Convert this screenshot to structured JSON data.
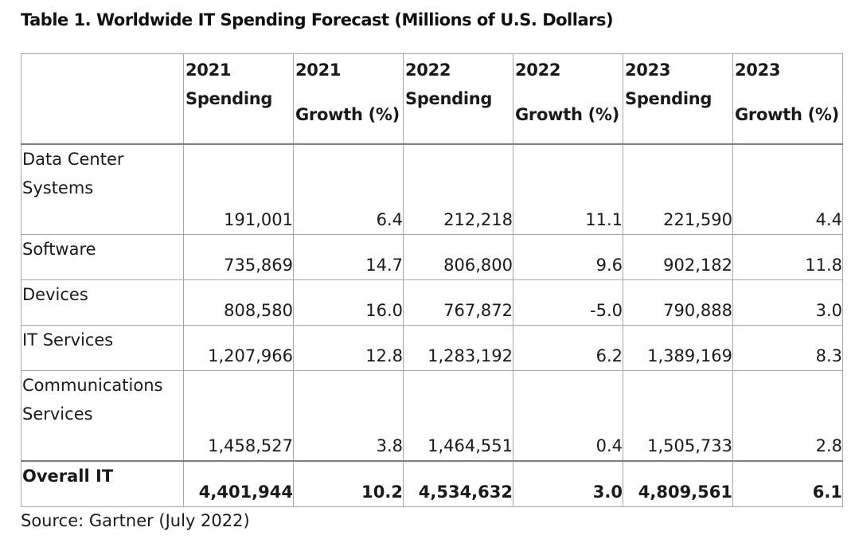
{
  "title": "Table 1. Worldwide IT Spending Forecast (Millions of U.S. Dollars)",
  "columns": [
    {
      "year": "2021",
      "label": "Spending"
    },
    {
      "year": "2021",
      "label": "Growth (%)"
    },
    {
      "year": "2022",
      "label": "Spending"
    },
    {
      "year": "2022",
      "label": "Growth (%)"
    },
    {
      "year": "2023",
      "label": "Spending"
    },
    {
      "year": "2023",
      "label": "Growth (%)"
    }
  ],
  "rows": [
    {
      "label": "Data Center Systems",
      "values": [
        "191,001",
        "6.4",
        "212,218",
        "11.1",
        "221,590",
        "4.4"
      ]
    },
    {
      "label": "Software",
      "values": [
        "735,869",
        "14.7",
        "806,800",
        "9.6",
        "902,182",
        "11.8"
      ]
    },
    {
      "label": "Devices",
      "values": [
        "808,580",
        "16.0",
        "767,872",
        "-5.0",
        "790,888",
        "3.0"
      ]
    },
    {
      "label": "IT Services",
      "values": [
        "1,207,966",
        "12.8",
        "1,283,192",
        "6.2",
        "1,389,169",
        "8.3"
      ]
    },
    {
      "label": "Communications Services",
      "values": [
        "1,458,527",
        "3.8",
        "1,464,551",
        "0.4",
        "1,505,733",
        "2.8"
      ]
    }
  ],
  "total": {
    "label": "Overall IT",
    "values": [
      "4,401,944",
      "10.2",
      "4,534,632",
      "3.0",
      "4,809,561",
      "6.1"
    ]
  },
  "source": "Source: Gartner (July 2022)"
}
